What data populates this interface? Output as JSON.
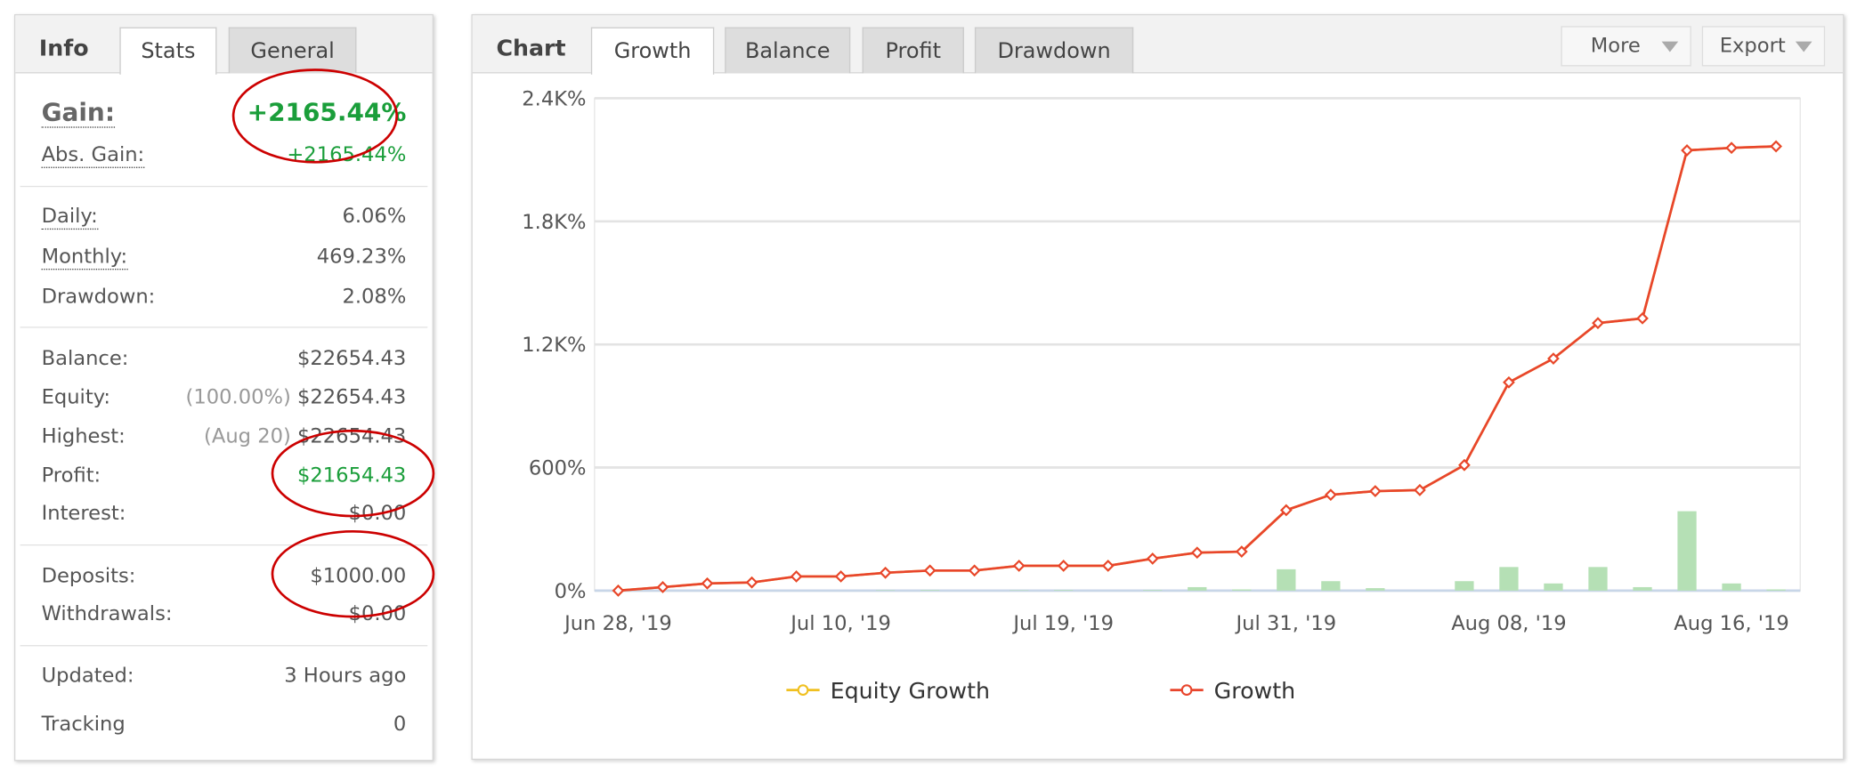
{
  "info_panel": {
    "tabs": [
      "Info",
      "Stats",
      "General"
    ],
    "rows": [
      {
        "label": "Gain:",
        "value": "+2165.44%"
      },
      {
        "label": "Abs. Gain:",
        "value": "+2165.44%"
      },
      {
        "label": "Daily:",
        "value": "6.06%"
      },
      {
        "label": "Monthly:",
        "value": "469.23%"
      },
      {
        "label": "Drawdown:",
        "value": "2.08%"
      },
      {
        "label": "Balance:",
        "value": "$22654.43"
      },
      {
        "label": "Equity:",
        "note": "(100.00%)",
        "value": "$22654.43"
      },
      {
        "label": "Highest:",
        "note": "(Aug 20)",
        "value": "$22654.43"
      },
      {
        "label": "Profit:",
        "value": "$21654.43"
      },
      {
        "label": "Interest:",
        "value": "$0.00"
      },
      {
        "label": "Deposits:",
        "value": "$1000.00"
      },
      {
        "label": "Withdrawals:",
        "value": "$0.00"
      },
      {
        "label": "Updated:",
        "value": "3 Hours ago"
      },
      {
        "label": "Tracking",
        "value": "0"
      }
    ]
  },
  "chart_panel": {
    "title": "Chart",
    "tabs": [
      "Growth",
      "Balance",
      "Profit",
      "Drawdown"
    ],
    "buttons": [
      "More",
      "Export"
    ]
  },
  "chart_data": {
    "type": "line",
    "categories": [
      "Jun 28, '19",
      null,
      null,
      null,
      null,
      "Jul 10, '19",
      null,
      null,
      null,
      null,
      "Jul 19, '19",
      null,
      null,
      null,
      null,
      "Jul 31, '19",
      null,
      null,
      null,
      null,
      "Aug 08, '19",
      null,
      null,
      null,
      null,
      "Aug 16, '19",
      null
    ],
    "series": [
      {
        "name": "Equity Growth",
        "color": "#f0c020",
        "values": [
          0,
          17,
          35,
          40,
          69,
          69,
          87,
          98,
          98,
          121,
          121,
          121,
          156,
          185,
          190,
          392,
          467,
          485,
          490,
          612,
          1015,
          1131,
          1304,
          1327,
          2146,
          2158,
          2165.44
        ]
      },
      {
        "name": "Growth",
        "color": "#e8452c",
        "values": [
          0,
          17,
          35,
          40,
          69,
          69,
          87,
          98,
          98,
          121,
          121,
          121,
          156,
          185,
          190,
          392,
          467,
          485,
          490,
          612,
          1015,
          1131,
          1304,
          1327,
          2146,
          2158,
          2165.44
        ]
      },
      {
        "type": "bar",
        "color": "#b5e0b5",
        "values": [
          0,
          0,
          0,
          0,
          0,
          0,
          2,
          3,
          0,
          2,
          3,
          0,
          3,
          17,
          6,
          104,
          46,
          12,
          0,
          46,
          115,
          35,
          115,
          17,
          387,
          35,
          6
        ]
      }
    ],
    "ylim": [
      0,
      2400
    ],
    "yticks": [
      {
        "value": 0,
        "label": "0%"
      },
      {
        "value": 600,
        "label": "600%"
      },
      {
        "value": 1200,
        "label": "1.2K%"
      },
      {
        "value": 1800,
        "label": "1.8K%"
      },
      {
        "value": 2400,
        "label": "2.4K%"
      }
    ],
    "grid": true
  }
}
